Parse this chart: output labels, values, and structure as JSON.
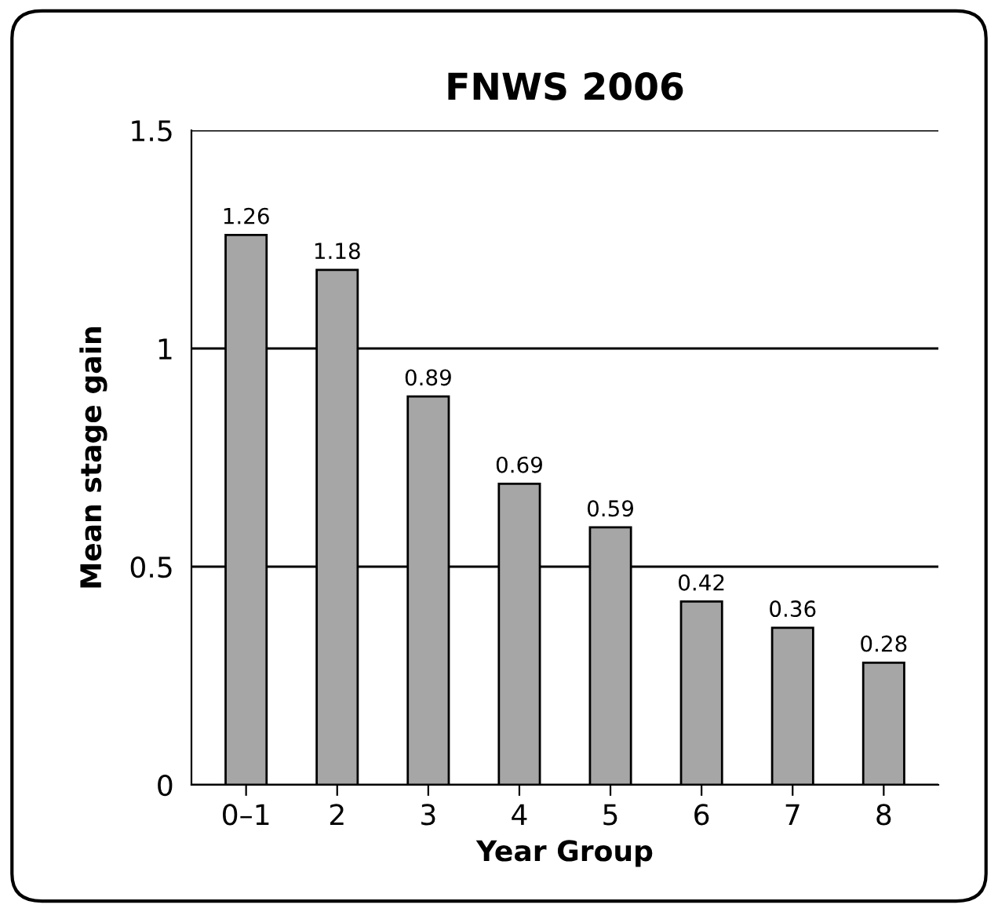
{
  "chart_data": {
    "type": "bar",
    "title": "FNWS 2006",
    "xlabel": "Year Group",
    "ylabel": "Mean stage gain",
    "categories": [
      "0–1",
      "2",
      "3",
      "4",
      "5",
      "6",
      "7",
      "8"
    ],
    "values": [
      1.26,
      1.18,
      0.89,
      0.69,
      0.59,
      0.42,
      0.36,
      0.28
    ],
    "color": "#a6a6a6",
    "ylim": [
      0,
      1.5
    ],
    "yticks": [
      0,
      0.5,
      1,
      1.5
    ],
    "grid": "y",
    "data_labels": true,
    "legend": false
  }
}
